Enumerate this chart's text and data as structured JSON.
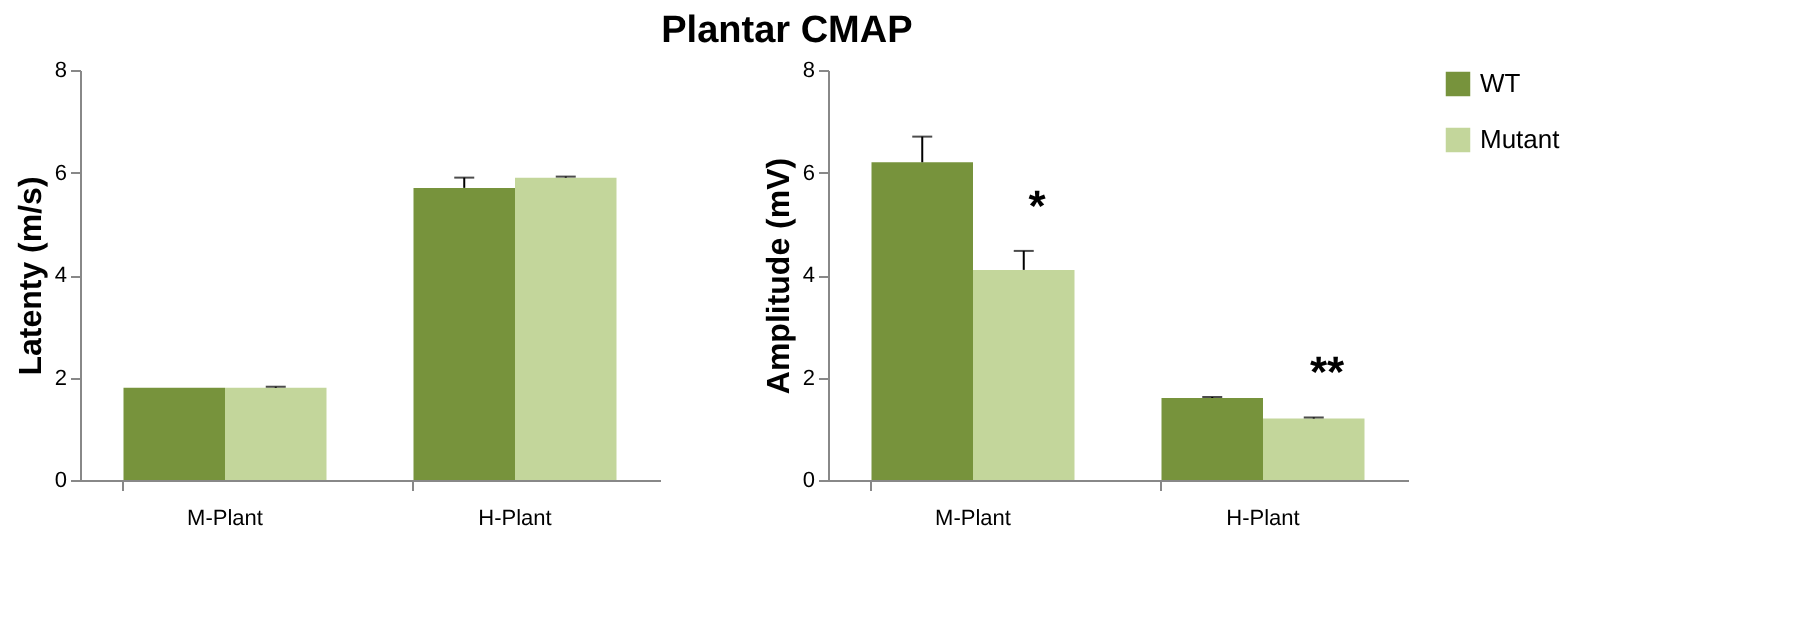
{
  "chart_data": [
    {
      "type": "bar",
      "title": "Plantar CMAP",
      "ylabel": "Latenty (m/s)",
      "categories": [
        "M-Plant",
        "H-Plant"
      ],
      "ylim": [
        0,
        8
      ],
      "yticks": [
        0,
        2,
        4,
        6,
        8
      ],
      "grid": false,
      "legend": false,
      "series": [
        {
          "color": "#77933c",
          "values": [
            1.8,
            5.7
          ],
          "errors": [
            null,
            [
              5.7,
              5.9
            ]
          ]
        },
        {
          "color": "#c3d69b",
          "values": [
            1.8,
            5.9
          ],
          "errors": [
            [
              1.8,
              1.82
            ],
            [
              5.9,
              5.92
            ]
          ]
        }
      ]
    },
    {
      "type": "bar",
      "ylabel": "Amplitude (mV)",
      "categories": [
        "M-Plant",
        "H-Plant"
      ],
      "ylim": [
        0,
        8
      ],
      "yticks": [
        0,
        2,
        4,
        6,
        8
      ],
      "grid": false,
      "legend": "right",
      "annotations": [
        {
          "text": "*",
          "x": "M-Plant",
          "y": 4.47
        },
        {
          "text": "**",
          "x": "H-Plant",
          "y": 1.22
        }
      ],
      "series": [
        {
          "name": "WT",
          "color": "#77933c",
          "values": [
            6.2,
            1.6
          ],
          "errors": [
            [
              6.2,
              6.7
            ],
            [
              1.6,
              1.62
            ]
          ]
        },
        {
          "name": "Mutant",
          "color": "#c3d69b",
          "values": [
            4.1,
            1.2
          ],
          "errors": [
            [
              4.1,
              4.47
            ],
            [
              1.2,
              1.22
            ]
          ]
        }
      ]
    }
  ]
}
